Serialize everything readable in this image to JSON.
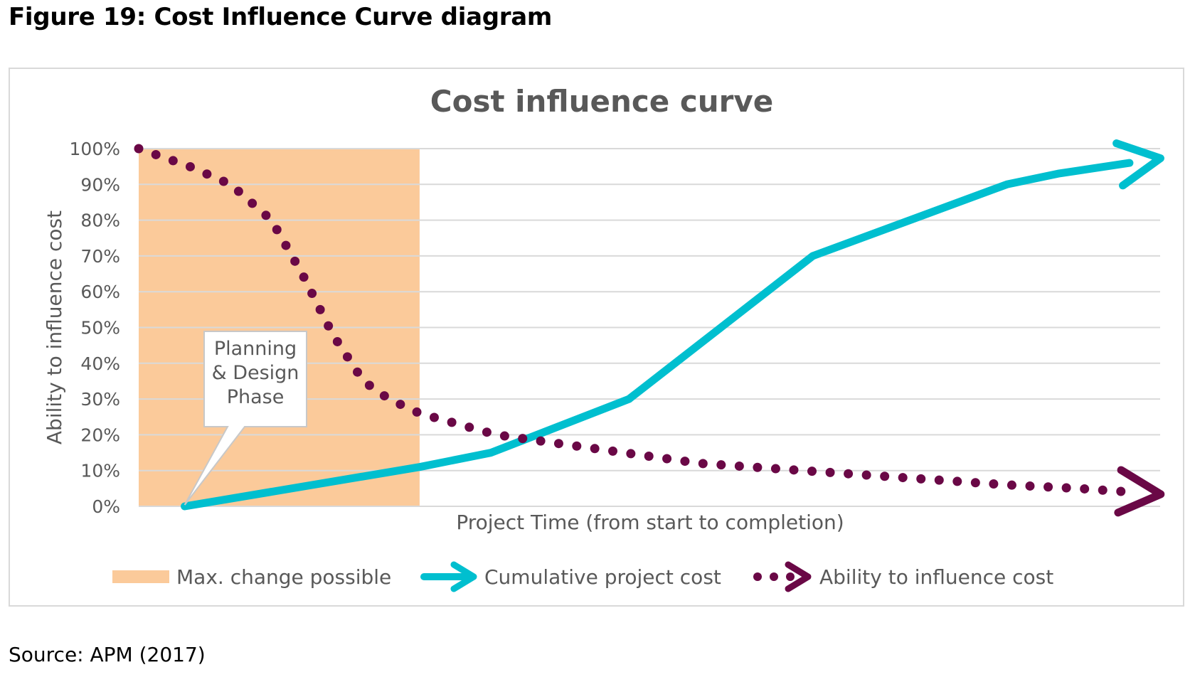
{
  "figure_title": "Figure 19: Cost Influence Curve diagram",
  "source": "Source: APM (2017)",
  "colors": {
    "accent_cyan": "#00bfcf",
    "accent_purple": "#6a0846",
    "band_orange": "#fbca9a",
    "grid": "#d9d9d9",
    "text_gray": "#595959"
  },
  "chart_data": {
    "type": "line",
    "title": "Cost influence curve",
    "xlabel": "Project Time (from start to completion)",
    "ylabel": "Ability to influence cost",
    "ylim": [
      0,
      100
    ],
    "xlim": [
      0,
      100
    ],
    "yticks": [
      "0%",
      "10%",
      "20%",
      "30%",
      "40%",
      "50%",
      "60%",
      "70%",
      "80%",
      "90%",
      "100%"
    ],
    "grid": true,
    "legend_position": "bottom",
    "shaded_region": {
      "label": "Max. change possible",
      "x_start": 0,
      "x_end": 27.5,
      "color": "#fbca9a"
    },
    "annotation": {
      "lines": [
        "Planning",
        "& Design",
        "Phase"
      ],
      "points_to": {
        "x": 4.5,
        "y": 0
      }
    },
    "series": [
      {
        "name": "Cumulative project cost",
        "style": "solid-arrow",
        "color": "#00bfcf",
        "x": [
          4.5,
          27.5,
          34.5,
          48,
          66,
          85,
          90,
          97
        ],
        "y": [
          0,
          11,
          15,
          30,
          70,
          90,
          93,
          96
        ]
      },
      {
        "name": "Ability to influence cost",
        "style": "dotted-arrow",
        "color": "#6a0846",
        "x": [
          0,
          2,
          5,
          9,
          13,
          16,
          19,
          22,
          24.5,
          27.5,
          35,
          45,
          55,
          65,
          75,
          85,
          92,
          97
        ],
        "y": [
          100,
          98,
          95,
          90,
          80,
          65,
          48,
          35,
          30,
          26,
          20,
          16,
          12,
          10,
          8,
          6,
          5,
          4
        ]
      }
    ]
  }
}
